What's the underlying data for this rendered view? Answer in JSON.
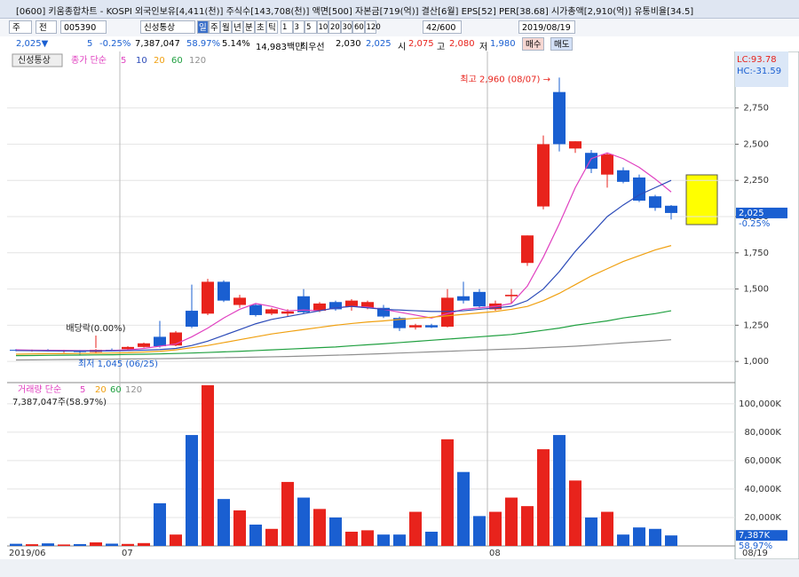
{
  "header": {
    "title": "[0600] 키움종합차트 - KOSPI 외국인보유[4,411(천)] 주식수[143,708(천)] 액면[500] 자본금[719(억)] 결산[6월] EPS[52] PER[38.68] 시가총액[2,910(억)] 유통비율[34.5]"
  },
  "toolbar": {
    "market": "주",
    "scope": "전",
    "code": "005390",
    "name": "신성통상",
    "periods": [
      "일",
      "주",
      "월",
      "년",
      "분",
      "초",
      "틱"
    ],
    "intervals": [
      "1",
      "3",
      "5",
      "10",
      "20",
      "30",
      "60",
      "120"
    ],
    "count": "42/600",
    "date": "2019/08/19"
  },
  "info": {
    "price": "2,025▼",
    "change": "5",
    "rate": "-0.25%",
    "volume": "7,387,047",
    "vol_ratio": "58.97%",
    "turnover": "5.14%",
    "amount": "14,983백만",
    "best_label": "최우선",
    "ask": "2,030",
    "bid": "2,025",
    "open_label": "시",
    "open": "2,075",
    "high_label": "고",
    "high": "2,080",
    "low_label": "저",
    "low": "1,980",
    "buy": "매수",
    "sell": "매도"
  },
  "chart_data": {
    "type": "candlestick",
    "name": "신성통상",
    "ma_label": "종가 단순",
    "up_color": "#e8231c",
    "down_color": "#1a5fd1",
    "ma": [
      {
        "name": "5",
        "color": "#e040c0",
        "values": [
          1080,
          1078,
          1077,
          1076,
          1075,
          1075,
          1076,
          1080,
          1090,
          1105,
          1120,
          1170,
          1230,
          1300,
          1360,
          1400,
          1380,
          1350,
          1355,
          1350,
          1370,
          1380,
          1375,
          1360,
          1340,
          1320,
          1300,
          1330,
          1360,
          1370,
          1380,
          1400,
          1520,
          1720,
          1950,
          2200,
          2400,
          2440,
          2400,
          2340,
          2260,
          2170
        ]
      },
      {
        "name": "10",
        "color": "#2c4bb8",
        "values": [
          1075,
          1074,
          1073,
          1072,
          1072,
          1072,
          1073,
          1075,
          1078,
          1082,
          1090,
          1110,
          1140,
          1180,
          1220,
          1260,
          1290,
          1310,
          1330,
          1350,
          1370,
          1380,
          1370,
          1360,
          1355,
          1350,
          1345,
          1345,
          1350,
          1360,
          1370,
          1380,
          1420,
          1500,
          1620,
          1760,
          1880,
          2000,
          2080,
          2150,
          2200,
          2250
        ]
      },
      {
        "name": "20",
        "color": "#f0a010",
        "values": [
          1050,
          1052,
          1053,
          1054,
          1055,
          1056,
          1058,
          1060,
          1065,
          1070,
          1080,
          1095,
          1110,
          1130,
          1150,
          1170,
          1190,
          1205,
          1220,
          1235,
          1250,
          1262,
          1272,
          1280,
          1290,
          1298,
          1305,
          1315,
          1325,
          1335,
          1345,
          1360,
          1380,
          1420,
          1470,
          1530,
          1590,
          1640,
          1690,
          1730,
          1770,
          1800
        ]
      },
      {
        "name": "60",
        "color": "#20a040",
        "values": [
          1040,
          1041,
          1042,
          1043,
          1044,
          1045,
          1046,
          1048,
          1050,
          1052,
          1055,
          1058,
          1062,
          1066,
          1070,
          1075,
          1080,
          1085,
          1090,
          1095,
          1100,
          1108,
          1115,
          1122,
          1130,
          1138,
          1146,
          1154,
          1162,
          1170,
          1178,
          1186,
          1200,
          1215,
          1230,
          1250,
          1265,
          1280,
          1300,
          1315,
          1330,
          1350
        ]
      },
      {
        "name": "120",
        "color": "#909090",
        "values": [
          1010,
          1011,
          1012,
          1013,
          1014,
          1015,
          1016,
          1017,
          1018,
          1019,
          1020,
          1022,
          1024,
          1026,
          1028,
          1030,
          1032,
          1034,
          1037,
          1040,
          1043,
          1046,
          1050,
          1054,
          1058,
          1062,
          1066,
          1070,
          1074,
          1078,
          1082,
          1086,
          1090,
          1095,
          1100,
          1105,
          1112,
          1120,
          1128,
          1135,
          1142,
          1150
        ]
      }
    ],
    "open": [
      1080,
      1075,
      1078,
      1072,
      1075,
      1065,
      1080,
      1085,
      1100,
      1170,
      1110,
      1350,
      1330,
      1550,
      1390,
      1390,
      1330,
      1330,
      1450,
      1350,
      1410,
      1380,
      1370,
      1370,
      1300,
      1235,
      1250,
      1240,
      1450,
      1480,
      1360,
      1450,
      1680,
      2070,
      2860,
      2470,
      2440,
      2290,
      2320,
      2270,
      2140,
      2075
    ],
    "high": [
      1085,
      1082,
      1085,
      1080,
      1078,
      1085,
      1090,
      1105,
      1130,
      1280,
      1210,
      1530,
      1570,
      1560,
      1460,
      1400,
      1370,
      1360,
      1500,
      1410,
      1420,
      1430,
      1420,
      1390,
      1310,
      1260,
      1260,
      1500,
      1550,
      1500,
      1420,
      1500,
      1870,
      2560,
      2960,
      2520,
      2460,
      2440,
      2340,
      2290,
      2150,
      2080
    ],
    "low": [
      1070,
      1068,
      1070,
      1060,
      1045,
      1060,
      1072,
      1080,
      1095,
      1095,
      1105,
      1230,
      1320,
      1410,
      1370,
      1310,
      1320,
      1310,
      1330,
      1340,
      1350,
      1350,
      1360,
      1300,
      1210,
      1220,
      1230,
      1235,
      1400,
      1370,
      1350,
      1400,
      1660,
      2050,
      2450,
      2440,
      2300,
      2200,
      2230,
      2100,
      2040,
      1980
    ],
    "close": [
      1075,
      1078,
      1072,
      1075,
      1065,
      1080,
      1078,
      1100,
      1125,
      1105,
      1200,
      1240,
      1550,
      1420,
      1440,
      1320,
      1360,
      1345,
      1340,
      1400,
      1360,
      1420,
      1410,
      1310,
      1230,
      1250,
      1235,
      1440,
      1420,
      1380,
      1400,
      1460,
      1870,
      2500,
      2500,
      2520,
      2330,
      2430,
      2240,
      2110,
      2060,
      2025
    ],
    "ylim": [
      860,
      3140
    ],
    "yticks": [
      {
        "value": 1000,
        "label": "1,000"
      },
      {
        "value": 1250,
        "label": "1,250"
      },
      {
        "value": 1500,
        "label": "1,500"
      },
      {
        "value": 1750,
        "label": "1,750"
      },
      {
        "value": 2000,
        "label": "2,000"
      },
      {
        "value": 2250,
        "label": "2,250"
      },
      {
        "value": 2500,
        "label": "2,500"
      },
      {
        "value": 2750,
        "label": "2,750"
      }
    ],
    "last_label": "2,025",
    "last_rate": "-0.25%",
    "lc": "LC:93.78",
    "hc": "HC:-31.59",
    "high_note": "최고 2,960 (08/07) →",
    "low_note": "최저 1,045 (06/25)",
    "dividend_note": "배당락(0.00%)",
    "volume_label": "거래량 단순",
    "volume_ma_names": [
      {
        "name": "5",
        "color": "#e040c0"
      },
      {
        "name": "20",
        "color": "#f0a010"
      },
      {
        "name": "60",
        "color": "#20a040"
      },
      {
        "name": "120",
        "color": "#909090"
      }
    ],
    "volume_note": "7,387,047주(58.97%)",
    "volume": [
      1500,
      1200,
      1800,
      1000,
      1300,
      2500,
      1600,
      1400,
      2000,
      30000,
      8000,
      78000,
      113000,
      33000,
      25000,
      15000,
      12000,
      45000,
      34000,
      26000,
      20000,
      10000,
      11000,
      8000,
      8000,
      24000,
      10000,
      75000,
      52000,
      21000,
      24000,
      34000,
      28000,
      68000,
      78000,
      46000,
      20000,
      24000,
      8000,
      13000,
      12000,
      7387
    ],
    "vlim": [
      0,
      113000
    ],
    "vticks": [
      {
        "value": 20000,
        "label": "20,000K"
      },
      {
        "value": 40000,
        "label": "40,000K"
      },
      {
        "value": 60000,
        "label": "60,000K"
      },
      {
        "value": 80000,
        "label": "80,000K"
      },
      {
        "value": 100000,
        "label": "100,000K"
      }
    ],
    "last_volume": "7,387K",
    "last_volume_rate": "58.97%",
    "dates": [
      {
        "index": 0,
        "label": "2019/06"
      },
      {
        "index": 7,
        "label": "07"
      },
      {
        "index": 30,
        "label": "08"
      }
    ],
    "end_date": "08/19"
  }
}
